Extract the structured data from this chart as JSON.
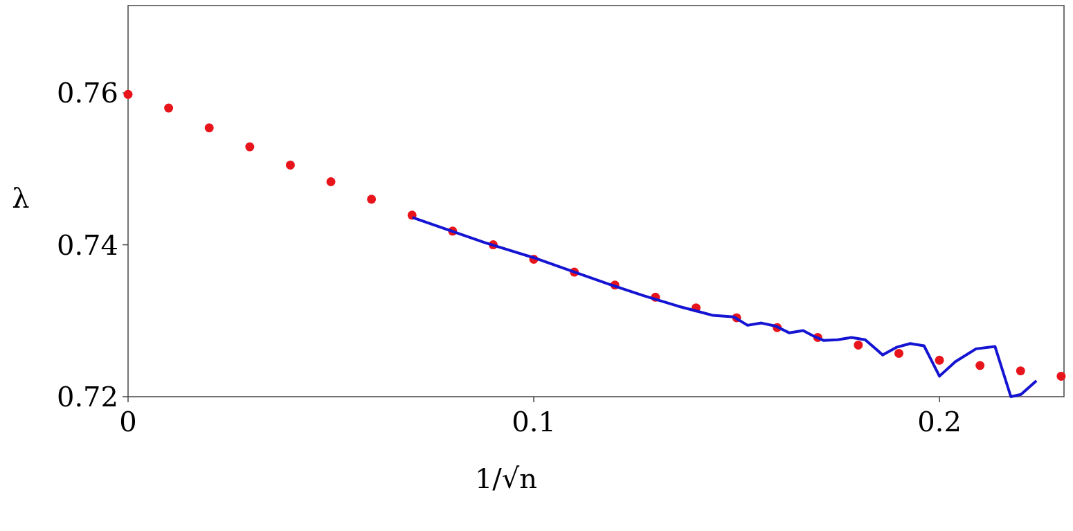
{
  "chart_data": {
    "type": "scatter",
    "xlabel": "1/√n",
    "ylabel": "λ",
    "xlim": [
      0,
      0.2307
    ],
    "ylim": [
      0.72,
      0.7715
    ],
    "xticks": [
      0,
      0.1,
      0.2
    ],
    "yticks": [
      0.72,
      0.74,
      0.76
    ],
    "grid": false,
    "series": [
      {
        "color": "#e8141b",
        "marker": "circle",
        "x": [
          0,
          0.01,
          0.02,
          0.03,
          0.04,
          0.05,
          0.06,
          0.07,
          0.08,
          0.09,
          0.1,
          0.11,
          0.12,
          0.13,
          0.14,
          0.15,
          0.16,
          0.17,
          0.18,
          0.19,
          0.2,
          0.21,
          0.22,
          0.23
        ],
        "values": [
          0.7598,
          0.758,
          0.7554,
          0.7529,
          0.7505,
          0.7483,
          0.746,
          0.7439,
          0.7418,
          0.74,
          0.7381,
          0.7364,
          0.7347,
          0.7331,
          0.7317,
          0.7304,
          0.7291,
          0.7278,
          0.7268,
          0.7257,
          0.7248,
          0.7241,
          0.7234,
          0.7227
        ]
      },
      {
        "type": "line",
        "color": "#1414d2",
        "marker": "none",
        "line_style": "solid",
        "x": [
          0.0701,
          0.0879,
          0.1,
          0.1101,
          0.1186,
          0.1271,
          0.1357,
          0.1442,
          0.1493,
          0.1527,
          0.1561,
          0.1596,
          0.163,
          0.1664,
          0.1689,
          0.1715,
          0.1749,
          0.1783,
          0.1817,
          0.186,
          0.1894,
          0.1928,
          0.1962,
          0.2,
          0.2039,
          0.209,
          0.2137,
          0.2176,
          0.2201,
          0.2239
        ],
        "values": [
          0.7436,
          0.7403,
          0.7383,
          0.7364,
          0.7348,
          0.7333,
          0.7319,
          0.7307,
          0.7305,
          0.7294,
          0.7297,
          0.7293,
          0.7284,
          0.7287,
          0.728,
          0.7274,
          0.7275,
          0.7278,
          0.7275,
          0.7255,
          0.7265,
          0.727,
          0.7267,
          0.7227,
          0.7246,
          0.7263,
          0.7266,
          0.72,
          0.7203,
          0.7221
        ]
      }
    ]
  }
}
